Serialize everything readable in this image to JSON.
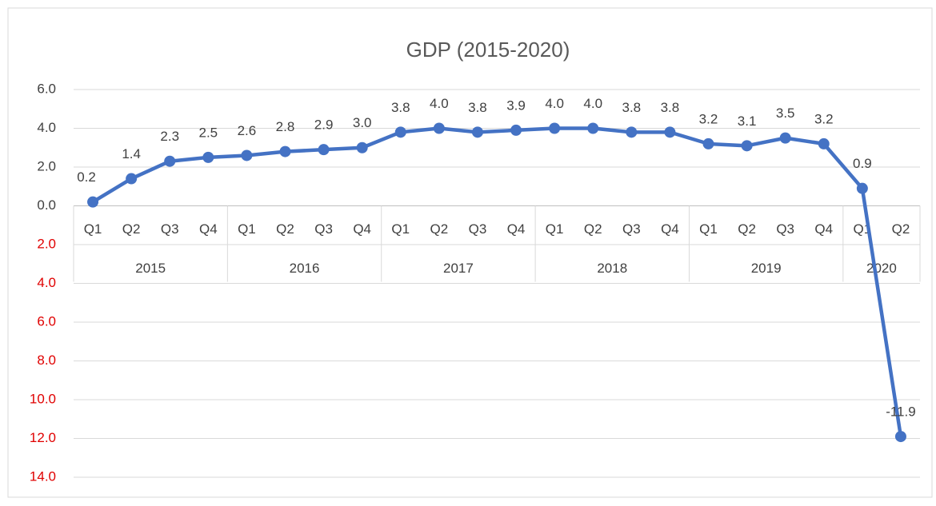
{
  "chart_data": {
    "type": "line",
    "title": "GDP (2015-2020)",
    "category_groups": [
      {
        "name": "2015",
        "categories": [
          "Q1",
          "Q2",
          "Q3",
          "Q4"
        ]
      },
      {
        "name": "2016",
        "categories": [
          "Q1",
          "Q2",
          "Q3",
          "Q4"
        ]
      },
      {
        "name": "2017",
        "categories": [
          "Q1",
          "Q2",
          "Q3",
          "Q4"
        ]
      },
      {
        "name": "2018",
        "categories": [
          "Q1",
          "Q2",
          "Q3",
          "Q4"
        ]
      },
      {
        "name": "2019",
        "categories": [
          "Q1",
          "Q2",
          "Q3",
          "Q4"
        ]
      },
      {
        "name": "2020",
        "categories": [
          "Q1",
          "Q2"
        ]
      }
    ],
    "values": [
      0.2,
      1.4,
      2.3,
      2.5,
      2.6,
      2.8,
      2.9,
      3.0,
      3.8,
      4.0,
      3.8,
      3.9,
      4.0,
      4.0,
      3.8,
      3.8,
      3.2,
      3.1,
      3.5,
      3.2,
      0.9,
      -11.9
    ],
    "value_labels": [
      "0.2",
      "1.4",
      "2.3",
      "2.5",
      "2.6",
      "2.8",
      "2.9",
      "3.0",
      "3.8",
      "4.0",
      "3.8",
      "3.9",
      "4.0",
      "4.0",
      "3.8",
      "3.8",
      "3.2",
      "3.1",
      "3.5",
      "3.2",
      "0.9",
      "-11.9"
    ],
    "color": "#4472c4",
    "negative_tick_color": "#e00000",
    "ylim": [
      -14,
      6
    ],
    "yticks": [
      {
        "value": 6,
        "label": "6.0"
      },
      {
        "value": 4,
        "label": "4.0"
      },
      {
        "value": 2,
        "label": "2.0"
      },
      {
        "value": 0,
        "label": "0.0"
      },
      {
        "value": -2,
        "label": "2.0"
      },
      {
        "value": -4,
        "label": "4.0"
      },
      {
        "value": -6,
        "label": "6.0"
      },
      {
        "value": -8,
        "label": "8.0"
      },
      {
        "value": -10,
        "label": "10.0"
      },
      {
        "value": -12,
        "label": "12.0"
      },
      {
        "value": -14,
        "label": "14.0"
      }
    ],
    "grid": true
  }
}
